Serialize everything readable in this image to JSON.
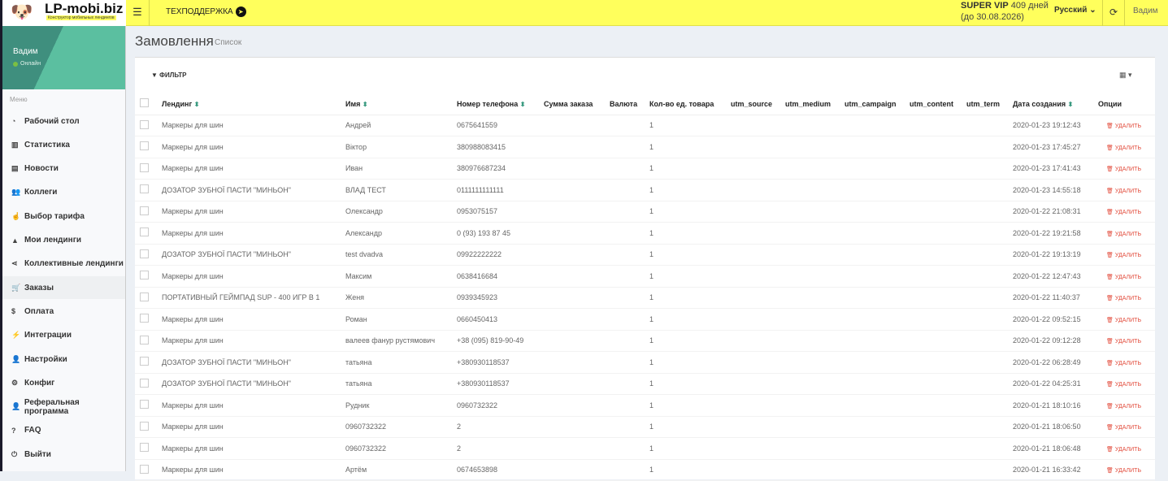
{
  "header": {
    "logo_text": "LP-mobi.biz",
    "logo_tagline": "Конструктор мобильных лендингов",
    "support": "ТЕХПОДДЕРЖКА",
    "plan": "SUPER VIP",
    "days": "409 дней",
    "until": "(до 30.08.2026)",
    "language": "Русский",
    "user": "Вадим"
  },
  "sidebar": {
    "user": "Вадим",
    "status": "Онлайн",
    "menu_header": "Меню",
    "items": [
      {
        "label": "Рабочий стол",
        "icon": "dashboard-icon",
        "glyph": "◔"
      },
      {
        "label": "Статистика",
        "icon": "bar-chart-icon",
        "glyph": "▥"
      },
      {
        "label": "Новости",
        "icon": "newspaper-icon",
        "glyph": "▤"
      },
      {
        "label": "Коллеги",
        "icon": "users-icon",
        "glyph": "👥"
      },
      {
        "label": "Выбор тарифа",
        "icon": "hand-pointer-icon",
        "glyph": "☝"
      },
      {
        "label": "Мои лендинги",
        "icon": "landings-icon",
        "glyph": "▲"
      },
      {
        "label": "Коллективные лендинги",
        "icon": "share-icon",
        "glyph": "⋖"
      },
      {
        "label": "Заказы",
        "icon": "cart-icon",
        "glyph": "🛒",
        "active": true
      },
      {
        "label": "Оплата",
        "icon": "dollar-icon",
        "glyph": "$"
      },
      {
        "label": "Интеграции",
        "icon": "plug-icon",
        "glyph": "⚡"
      },
      {
        "label": "Настройки",
        "icon": "user-icon",
        "glyph": "👤"
      },
      {
        "label": "Конфиг",
        "icon": "cogs-icon",
        "glyph": "⚙"
      },
      {
        "label": "Реферальная программа",
        "icon": "user-plus-icon",
        "glyph": "👤"
      },
      {
        "label": "FAQ",
        "icon": "question-icon",
        "glyph": "?"
      },
      {
        "label": "Выйти",
        "icon": "power-icon",
        "glyph": "⏻"
      }
    ]
  },
  "page": {
    "title": "Замовлення",
    "subtitle": "Список",
    "filter": "ФИЛЬТР",
    "delete_label": "УДАЛИТЬ"
  },
  "colors": {
    "topbar": "#ffff5c",
    "accent": "#5bbfa0",
    "delete": "#e24b3b"
  },
  "table": {
    "columns": [
      "Лендинг",
      "Имя",
      "Номер телефона",
      "Сумма заказа",
      "Валюта",
      "Кол-во ед. товара",
      "utm_source",
      "utm_medium",
      "utm_campaign",
      "utm_content",
      "utm_term",
      "Дата создания",
      "Опции"
    ],
    "rows": [
      [
        "Маркеры для шин",
        "Андрей",
        "0675641559",
        "1",
        "2020-01-23 19:12:43"
      ],
      [
        "Маркеры для шин",
        "Віктор",
        "380988083415",
        "1",
        "2020-01-23 17:45:27"
      ],
      [
        "Маркеры для шин",
        "Иван",
        "380976687234",
        "1",
        "2020-01-23 17:41:43"
      ],
      [
        "ДОЗАТОР ЗУБНОЇ ПАСТИ \"МИНЬОН\"",
        "ВЛАД ТЕСТ",
        "0111111111111",
        "1",
        "2020-01-23 14:55:18"
      ],
      [
        "Маркеры для шин",
        "Олександр",
        "0953075157",
        "1",
        "2020-01-22 21:08:31"
      ],
      [
        "Маркеры для шин",
        "Александр",
        "0 (93) 193 87 45",
        "1",
        "2020-01-22 19:21:58"
      ],
      [
        "ДОЗАТОР ЗУБНОЇ ПАСТИ \"МИНЬОН\"",
        "test dvadva",
        "09922222222",
        "1",
        "2020-01-22 19:13:19"
      ],
      [
        "Маркеры для шин",
        "Максим",
        "0638416684",
        "1",
        "2020-01-22 12:47:43"
      ],
      [
        "ПОРТАТИВНЫЙ ГЕЙМПАД SUP - 400 ИГР В 1",
        "Женя",
        "0939345923",
        "1",
        "2020-01-22 11:40:37"
      ],
      [
        "Маркеры для шин",
        "Роман",
        "0660450413",
        "1",
        "2020-01-22 09:52:15"
      ],
      [
        "Маркеры для шин",
        "валеев фанур рустямович",
        "+38 (095) 819-90-49",
        "1",
        "2020-01-22 09:12:28"
      ],
      [
        "ДОЗАТОР ЗУБНОЇ ПАСТИ \"МИНЬОН\"",
        "татьяна",
        "+380930118537",
        "1",
        "2020-01-22 06:28:49"
      ],
      [
        "ДОЗАТОР ЗУБНОЇ ПАСТИ \"МИНЬОН\"",
        "татьяна",
        "+380930118537",
        "1",
        "2020-01-22 04:25:31"
      ],
      [
        "Маркеры для шин",
        "Рудник",
        "0960732322",
        "1",
        "2020-01-21 18:10:16"
      ],
      [
        "Маркеры для шин",
        "0960732322",
        "2",
        "1",
        "2020-01-21 18:06:50"
      ],
      [
        "Маркеры для шин",
        "0960732322",
        "2",
        "1",
        "2020-01-21 18:06:48"
      ],
      [
        "Маркеры для шин",
        "Артём",
        "0674653898",
        "1",
        "2020-01-21 16:33:42"
      ]
    ]
  }
}
